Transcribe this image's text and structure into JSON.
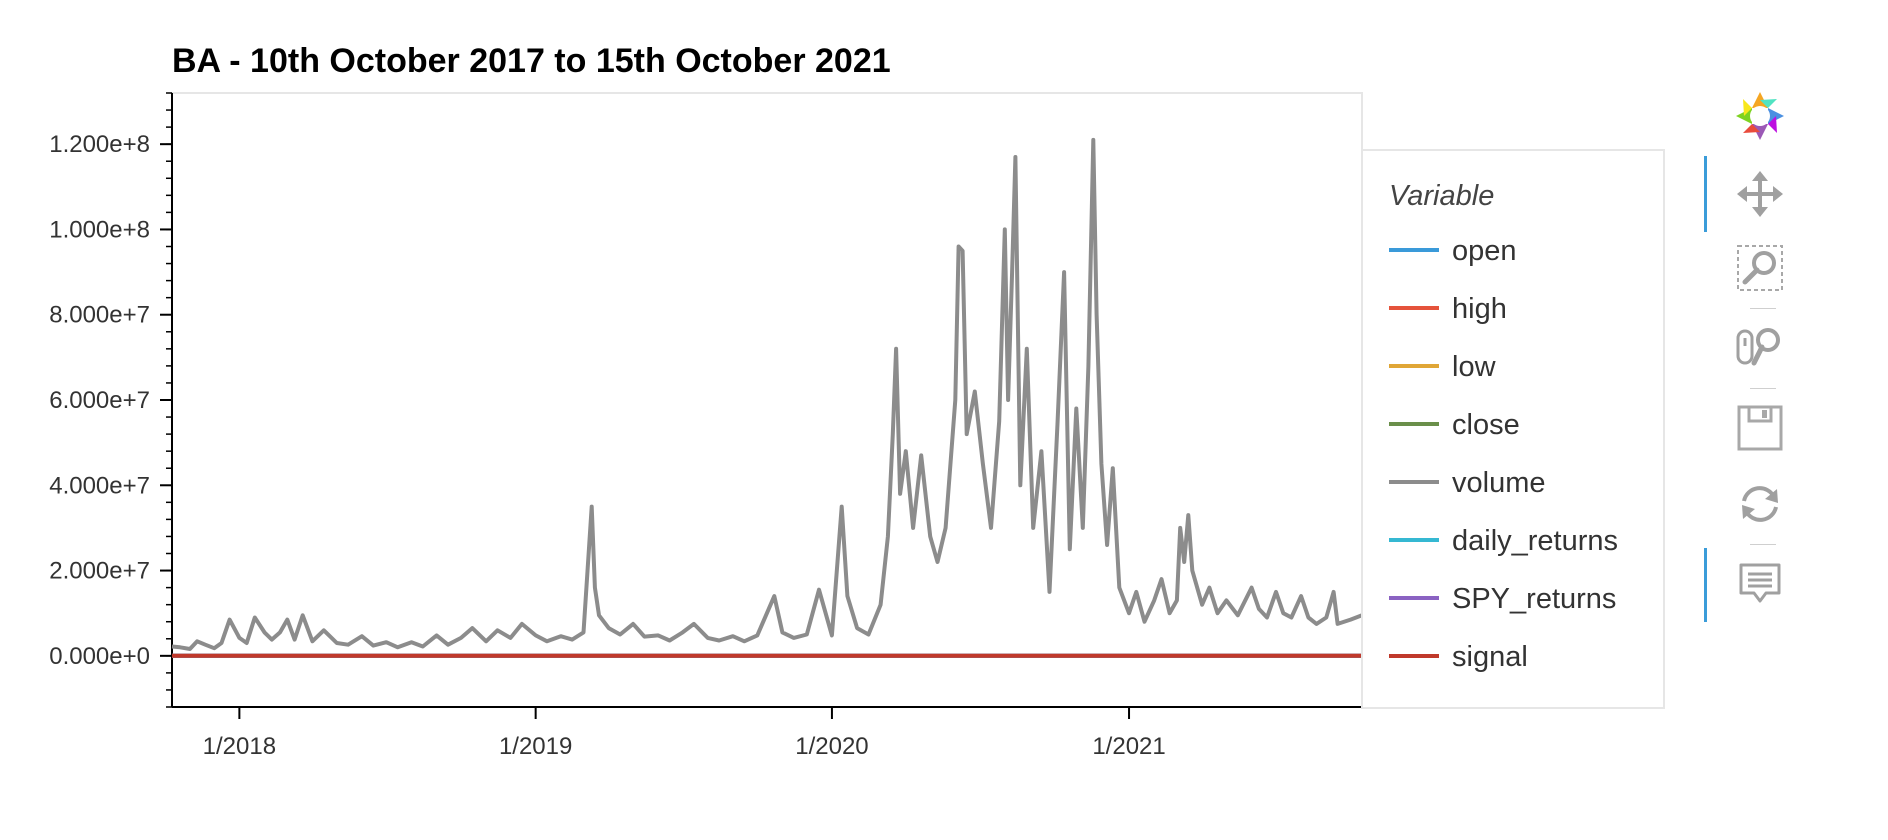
{
  "chart_data": {
    "type": "line",
    "title": "BA - 10th October 2017 to 15th October 2021",
    "xlabel": "",
    "ylabel": "",
    "x_range": [
      "2017-10-10",
      "2021-10-15"
    ],
    "ylim": [
      -12000000,
      132000000
    ],
    "y_ticks": [
      0,
      20000000,
      40000000,
      60000000,
      80000000,
      100000000,
      120000000
    ],
    "y_tick_labels": [
      "0.000e+0",
      "2.000e+7",
      "4.000e+7",
      "6.000e+7",
      "8.000e+7",
      "1.000e+8",
      "1.200e+8"
    ],
    "x_ticks": [
      "2018-01-01",
      "2019-01-01",
      "2020-01-01",
      "2021-01-01"
    ],
    "x_tick_labels": [
      "1/2018",
      "1/2019",
      "1/2020",
      "1/2021"
    ],
    "legend_title": "Variable",
    "legend_position": "right",
    "series": [
      {
        "name": "open",
        "color": "#3a9ad9",
        "values": [
          [
            "2017-10-10",
            265
          ],
          [
            "2021-10-15",
            220
          ]
        ]
      },
      {
        "name": "high",
        "color": "#e5533b",
        "values": [
          [
            "2017-10-10",
            267
          ],
          [
            "2021-10-15",
            222
          ]
        ]
      },
      {
        "name": "low",
        "color": "#e0a636",
        "values": [
          [
            "2017-10-10",
            262
          ],
          [
            "2021-10-15",
            218
          ]
        ]
      },
      {
        "name": "close",
        "color": "#6a8f4a",
        "values": [
          [
            "2017-10-10",
            265
          ],
          [
            "2021-10-15",
            220
          ]
        ]
      },
      {
        "name": "volume",
        "color": "#8c8c8c",
        "values": [
          [
            "2017-10-10",
            2200000
          ],
          [
            "2017-10-20",
            2000000
          ],
          [
            "2017-11-01",
            1600000
          ],
          [
            "2017-11-10",
            3400000
          ],
          [
            "2017-11-20",
            2600000
          ],
          [
            "2017-12-01",
            1800000
          ],
          [
            "2017-12-10",
            3000000
          ],
          [
            "2017-12-20",
            8500000
          ],
          [
            "2018-01-01",
            4200000
          ],
          [
            "2018-01-10",
            3000000
          ],
          [
            "2018-01-20",
            9000000
          ],
          [
            "2018-02-01",
            5500000
          ],
          [
            "2018-02-10",
            3800000
          ],
          [
            "2018-02-20",
            5500000
          ],
          [
            "2018-03-01",
            8500000
          ],
          [
            "2018-03-10",
            3800000
          ],
          [
            "2018-03-20",
            9500000
          ],
          [
            "2018-04-01",
            3400000
          ],
          [
            "2018-04-15",
            6000000
          ],
          [
            "2018-05-01",
            3000000
          ],
          [
            "2018-05-15",
            2600000
          ],
          [
            "2018-06-01",
            4600000
          ],
          [
            "2018-06-15",
            2400000
          ],
          [
            "2018-07-01",
            3200000
          ],
          [
            "2018-07-15",
            2000000
          ],
          [
            "2018-08-01",
            3200000
          ],
          [
            "2018-08-15",
            2200000
          ],
          [
            "2018-09-01",
            4800000
          ],
          [
            "2018-09-15",
            2600000
          ],
          [
            "2018-10-01",
            4200000
          ],
          [
            "2018-10-15",
            6500000
          ],
          [
            "2018-11-01",
            3400000
          ],
          [
            "2018-11-15",
            6000000
          ],
          [
            "2018-12-01",
            4200000
          ],
          [
            "2018-12-15",
            7500000
          ],
          [
            "2019-01-01",
            4800000
          ],
          [
            "2019-01-15",
            3400000
          ],
          [
            "2019-02-01",
            4600000
          ],
          [
            "2019-02-15",
            3800000
          ],
          [
            "2019-03-01",
            5500000
          ],
          [
            "2019-03-11",
            35000000
          ],
          [
            "2019-03-15",
            16000000
          ],
          [
            "2019-03-20",
            9500000
          ],
          [
            "2019-04-01",
            6500000
          ],
          [
            "2019-04-15",
            5000000
          ],
          [
            "2019-05-01",
            7500000
          ],
          [
            "2019-05-15",
            4500000
          ],
          [
            "2019-06-01",
            4800000
          ],
          [
            "2019-06-15",
            3600000
          ],
          [
            "2019-07-01",
            5500000
          ],
          [
            "2019-07-15",
            7500000
          ],
          [
            "2019-08-01",
            4200000
          ],
          [
            "2019-08-15",
            3600000
          ],
          [
            "2019-09-01",
            4600000
          ],
          [
            "2019-09-15",
            3400000
          ],
          [
            "2019-10-01",
            4800000
          ],
          [
            "2019-10-22",
            14000000
          ],
          [
            "2019-11-01",
            5500000
          ],
          [
            "2019-11-15",
            4200000
          ],
          [
            "2019-12-01",
            5000000
          ],
          [
            "2019-12-16",
            15500000
          ],
          [
            "2020-01-01",
            4800000
          ],
          [
            "2020-01-13",
            35000000
          ],
          [
            "2020-01-20",
            14000000
          ],
          [
            "2020-02-01",
            6500000
          ],
          [
            "2020-02-15",
            5000000
          ],
          [
            "2020-03-01",
            12000000
          ],
          [
            "2020-03-10",
            28000000
          ],
          [
            "2020-03-16",
            52000000
          ],
          [
            "2020-03-20",
            72000000
          ],
          [
            "2020-03-25",
            38000000
          ],
          [
            "2020-04-01",
            48000000
          ],
          [
            "2020-04-10",
            30000000
          ],
          [
            "2020-04-20",
            47000000
          ],
          [
            "2020-05-01",
            28000000
          ],
          [
            "2020-05-10",
            22000000
          ],
          [
            "2020-05-20",
            30000000
          ],
          [
            "2020-06-01",
            60000000
          ],
          [
            "2020-06-05",
            96000000
          ],
          [
            "2020-06-10",
            95000000
          ],
          [
            "2020-06-15",
            52000000
          ],
          [
            "2020-06-25",
            62000000
          ],
          [
            "2020-07-05",
            45000000
          ],
          [
            "2020-07-15",
            30000000
          ],
          [
            "2020-07-25",
            55000000
          ],
          [
            "2020-08-01",
            100000000
          ],
          [
            "2020-08-05",
            60000000
          ],
          [
            "2020-08-10",
            90000000
          ],
          [
            "2020-08-14",
            117000000
          ],
          [
            "2020-08-20",
            40000000
          ],
          [
            "2020-08-28",
            72000000
          ],
          [
            "2020-09-05",
            30000000
          ],
          [
            "2020-09-15",
            48000000
          ],
          [
            "2020-09-25",
            15000000
          ],
          [
            "2020-10-05",
            55000000
          ],
          [
            "2020-10-13",
            90000000
          ],
          [
            "2020-10-20",
            25000000
          ],
          [
            "2020-10-28",
            58000000
          ],
          [
            "2020-11-05",
            30000000
          ],
          [
            "2020-11-12",
            68000000
          ],
          [
            "2020-11-18",
            121000000
          ],
          [
            "2020-11-22",
            80000000
          ],
          [
            "2020-11-28",
            45000000
          ],
          [
            "2020-12-05",
            26000000
          ],
          [
            "2020-12-12",
            44000000
          ],
          [
            "2020-12-20",
            16000000
          ],
          [
            "2021-01-01",
            10000000
          ],
          [
            "2021-01-10",
            15000000
          ],
          [
            "2021-01-20",
            8000000
          ],
          [
            "2021-02-01",
            13000000
          ],
          [
            "2021-02-10",
            18000000
          ],
          [
            "2021-02-20",
            10000000
          ],
          [
            "2021-03-01",
            13000000
          ],
          [
            "2021-03-05",
            30000000
          ],
          [
            "2021-03-10",
            22000000
          ],
          [
            "2021-03-15",
            33000000
          ],
          [
            "2021-03-20",
            20000000
          ],
          [
            "2021-04-01",
            12000000
          ],
          [
            "2021-04-10",
            16000000
          ],
          [
            "2021-04-20",
            10000000
          ],
          [
            "2021-05-01",
            13000000
          ],
          [
            "2021-05-15",
            9500000
          ],
          [
            "2021-06-01",
            16000000
          ],
          [
            "2021-06-10",
            11000000
          ],
          [
            "2021-06-20",
            9000000
          ],
          [
            "2021-07-01",
            15000000
          ],
          [
            "2021-07-10",
            10000000
          ],
          [
            "2021-07-20",
            9000000
          ],
          [
            "2021-08-01",
            14000000
          ],
          [
            "2021-08-10",
            9000000
          ],
          [
            "2021-08-20",
            7500000
          ],
          [
            "2021-09-01",
            9000000
          ],
          [
            "2021-09-10",
            15000000
          ],
          [
            "2021-09-15",
            7500000
          ],
          [
            "2021-10-01",
            8500000
          ],
          [
            "2021-10-15",
            9500000
          ]
        ]
      },
      {
        "name": "daily_returns",
        "color": "#35b8d2",
        "values": [
          [
            "2017-10-10",
            0
          ],
          [
            "2021-10-15",
            0
          ]
        ]
      },
      {
        "name": "SPY_returns",
        "color": "#8a62c2",
        "values": [
          [
            "2017-10-10",
            0
          ],
          [
            "2021-10-15",
            0
          ]
        ]
      },
      {
        "name": "signal",
        "color": "#c0392b",
        "values": [
          [
            "2017-10-10",
            0
          ],
          [
            "2021-10-15",
            0
          ]
        ]
      }
    ]
  },
  "toolbar": {
    "items": [
      {
        "icon": "bokeh-logo-icon",
        "active": false
      },
      {
        "icon": "pan-icon",
        "active": true
      },
      {
        "icon": "box-zoom-icon",
        "active": false
      },
      {
        "icon": "wheel-zoom-icon",
        "active": false
      },
      {
        "icon": "save-icon",
        "active": false
      },
      {
        "icon": "reset-icon",
        "active": false
      },
      {
        "icon": "hover-icon",
        "active": true
      }
    ]
  }
}
